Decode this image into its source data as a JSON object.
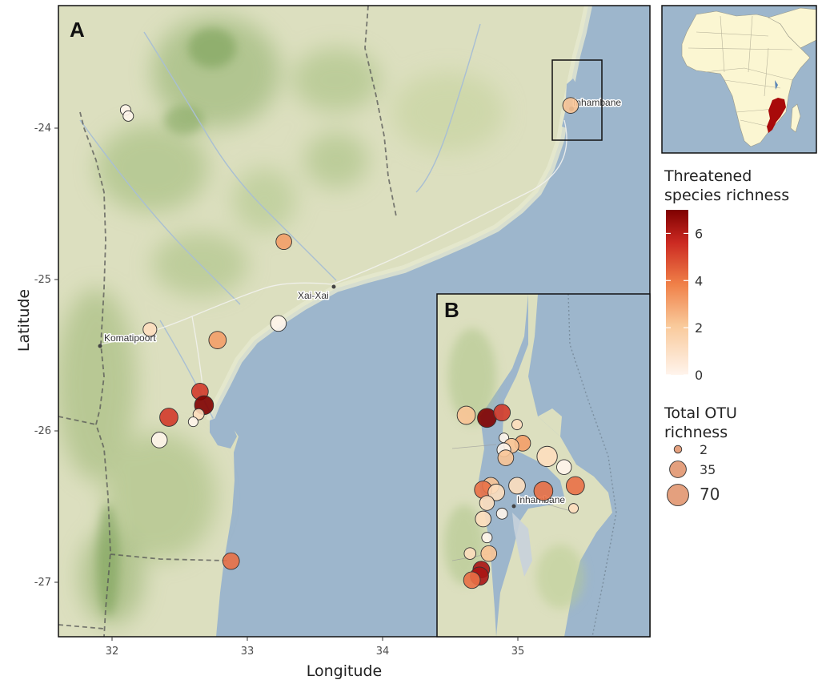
{
  "panels": {
    "main": "A",
    "inset": "B"
  },
  "axes": {
    "xlabel": "Longitude",
    "ylabel": "Latitude",
    "xticks": [
      "32",
      "33",
      "34",
      "35"
    ],
    "yticks": [
      "-24",
      "-25",
      "-26",
      "-27"
    ]
  },
  "places": {
    "inhambane": "Inhambane",
    "xai_xai": "Xai-Xai",
    "komatipoort": "Komatipoort",
    "inhambane_inset": "Inhambane"
  },
  "legend": {
    "color_title_line1": "Threatened",
    "color_title_line2": "species richness",
    "color_ticks": [
      "6",
      "4",
      "2",
      "0"
    ],
    "color_range": [
      0,
      7
    ],
    "size_title_line1": "Total OTU",
    "size_title_line2": "richness",
    "size_ticks": [
      "2",
      "35",
      "70"
    ]
  },
  "colors": {
    "ocean": "#9db6cc",
    "land": "#dcdfbf",
    "ramp_low": "#fff4ec",
    "ramp_mid": "#f4a16b",
    "ramp_high": "#7f0000",
    "country_highlight": "#a80a0a"
  },
  "map_extent": {
    "lon": [
      31.6,
      35.95
    ],
    "lat": [
      -27.35,
      -23.35
    ]
  },
  "inset_extent": {
    "lon": [
      34.42,
      35.95
    ],
    "lat": [
      -27.35,
      -25.1
    ]
  },
  "chart_data": {
    "type": "scatter",
    "xlabel": "Longitude",
    "ylabel": "Latitude",
    "color_variable": "Threatened species richness",
    "size_variable": "Total OTU richness",
    "main_sites": [
      {
        "lon": 32.1,
        "lat": -23.88,
        "threatened": 0,
        "otu": 8
      },
      {
        "lon": 32.12,
        "lat": -23.92,
        "threatened": 0,
        "otu": 8
      },
      {
        "lon": 35.39,
        "lat": -23.85,
        "threatened": 2,
        "otu": 30
      },
      {
        "lon": 33.27,
        "lat": -24.75,
        "threatened": 3,
        "otu": 30
      },
      {
        "lon": 33.23,
        "lat": -25.29,
        "threatened": 0,
        "otu": 30
      },
      {
        "lon": 32.28,
        "lat": -25.33,
        "threatened": 1,
        "otu": 20
      },
      {
        "lon": 32.78,
        "lat": -25.4,
        "threatened": 3,
        "otu": 40
      },
      {
        "lon": 32.65,
        "lat": -25.74,
        "threatened": 5,
        "otu": 35
      },
      {
        "lon": 32.68,
        "lat": -25.83,
        "threatened": 7,
        "otu": 50
      },
      {
        "lon": 32.64,
        "lat": -25.89,
        "threatened": 1,
        "otu": 10
      },
      {
        "lon": 32.6,
        "lat": -25.94,
        "threatened": 0,
        "otu": 6
      },
      {
        "lon": 32.42,
        "lat": -25.91,
        "threatened": 5,
        "otu": 45
      },
      {
        "lon": 32.35,
        "lat": -26.06,
        "threatened": 0,
        "otu": 30
      },
      {
        "lon": 32.88,
        "lat": -26.86,
        "threatened": 4,
        "otu": 35
      }
    ],
    "inset_sites": [
      {
        "lon": 34.73,
        "lat": -25.78,
        "threatened": 2,
        "otu": 45
      },
      {
        "lon": 34.84,
        "lat": -25.8,
        "threatened": 7,
        "otu": 50
      },
      {
        "lon": 34.92,
        "lat": -25.76,
        "threatened": 5,
        "otu": 35
      },
      {
        "lon": 35.0,
        "lat": -25.85,
        "threatened": 1,
        "otu": 8
      },
      {
        "lon": 34.93,
        "lat": -25.95,
        "threatened": 0,
        "otu": 6
      },
      {
        "lon": 35.03,
        "lat": -25.99,
        "threatened": 3,
        "otu": 30
      },
      {
        "lon": 34.97,
        "lat": -26.01,
        "threatened": 2,
        "otu": 25
      },
      {
        "lon": 34.93,
        "lat": -26.04,
        "threatened": 0,
        "otu": 20
      },
      {
        "lon": 35.16,
        "lat": -26.09,
        "threatened": 1,
        "otu": 60
      },
      {
        "lon": 34.94,
        "lat": -26.1,
        "threatened": 2,
        "otu": 30
      },
      {
        "lon": 35.25,
        "lat": -26.17,
        "threatened": 0,
        "otu": 25
      },
      {
        "lon": 34.86,
        "lat": -26.31,
        "threatened": 2,
        "otu": 35
      },
      {
        "lon": 34.82,
        "lat": -26.34,
        "threatened": 4,
        "otu": 40
      },
      {
        "lon": 34.89,
        "lat": -26.36,
        "threatened": 1,
        "otu": 35
      },
      {
        "lon": 35.0,
        "lat": -26.31,
        "threatened": 1,
        "otu": 35
      },
      {
        "lon": 35.14,
        "lat": -26.35,
        "threatened": 4,
        "otu": 50
      },
      {
        "lon": 35.31,
        "lat": -26.31,
        "threatened": 4,
        "otu": 45
      },
      {
        "lon": 34.84,
        "lat": -26.44,
        "threatened": 1,
        "otu": 25
      },
      {
        "lon": 34.92,
        "lat": -26.52,
        "threatened": 0,
        "otu": 10
      },
      {
        "lon": 34.82,
        "lat": -26.56,
        "threatened": 1,
        "otu": 30
      },
      {
        "lon": 35.3,
        "lat": -26.48,
        "threatened": 1,
        "otu": 6
      },
      {
        "lon": 34.84,
        "lat": -26.7,
        "threatened": 0,
        "otu": 8
      },
      {
        "lon": 34.85,
        "lat": -26.82,
        "threatened": 2,
        "otu": 30
      },
      {
        "lon": 34.75,
        "lat": -26.82,
        "threatened": 1,
        "otu": 12
      },
      {
        "lon": 34.81,
        "lat": -26.94,
        "threatened": 6,
        "otu": 35
      },
      {
        "lon": 34.8,
        "lat": -26.99,
        "threatened": 6,
        "otu": 45
      },
      {
        "lon": 34.76,
        "lat": -27.02,
        "threatened": 4,
        "otu": 35
      }
    ]
  }
}
